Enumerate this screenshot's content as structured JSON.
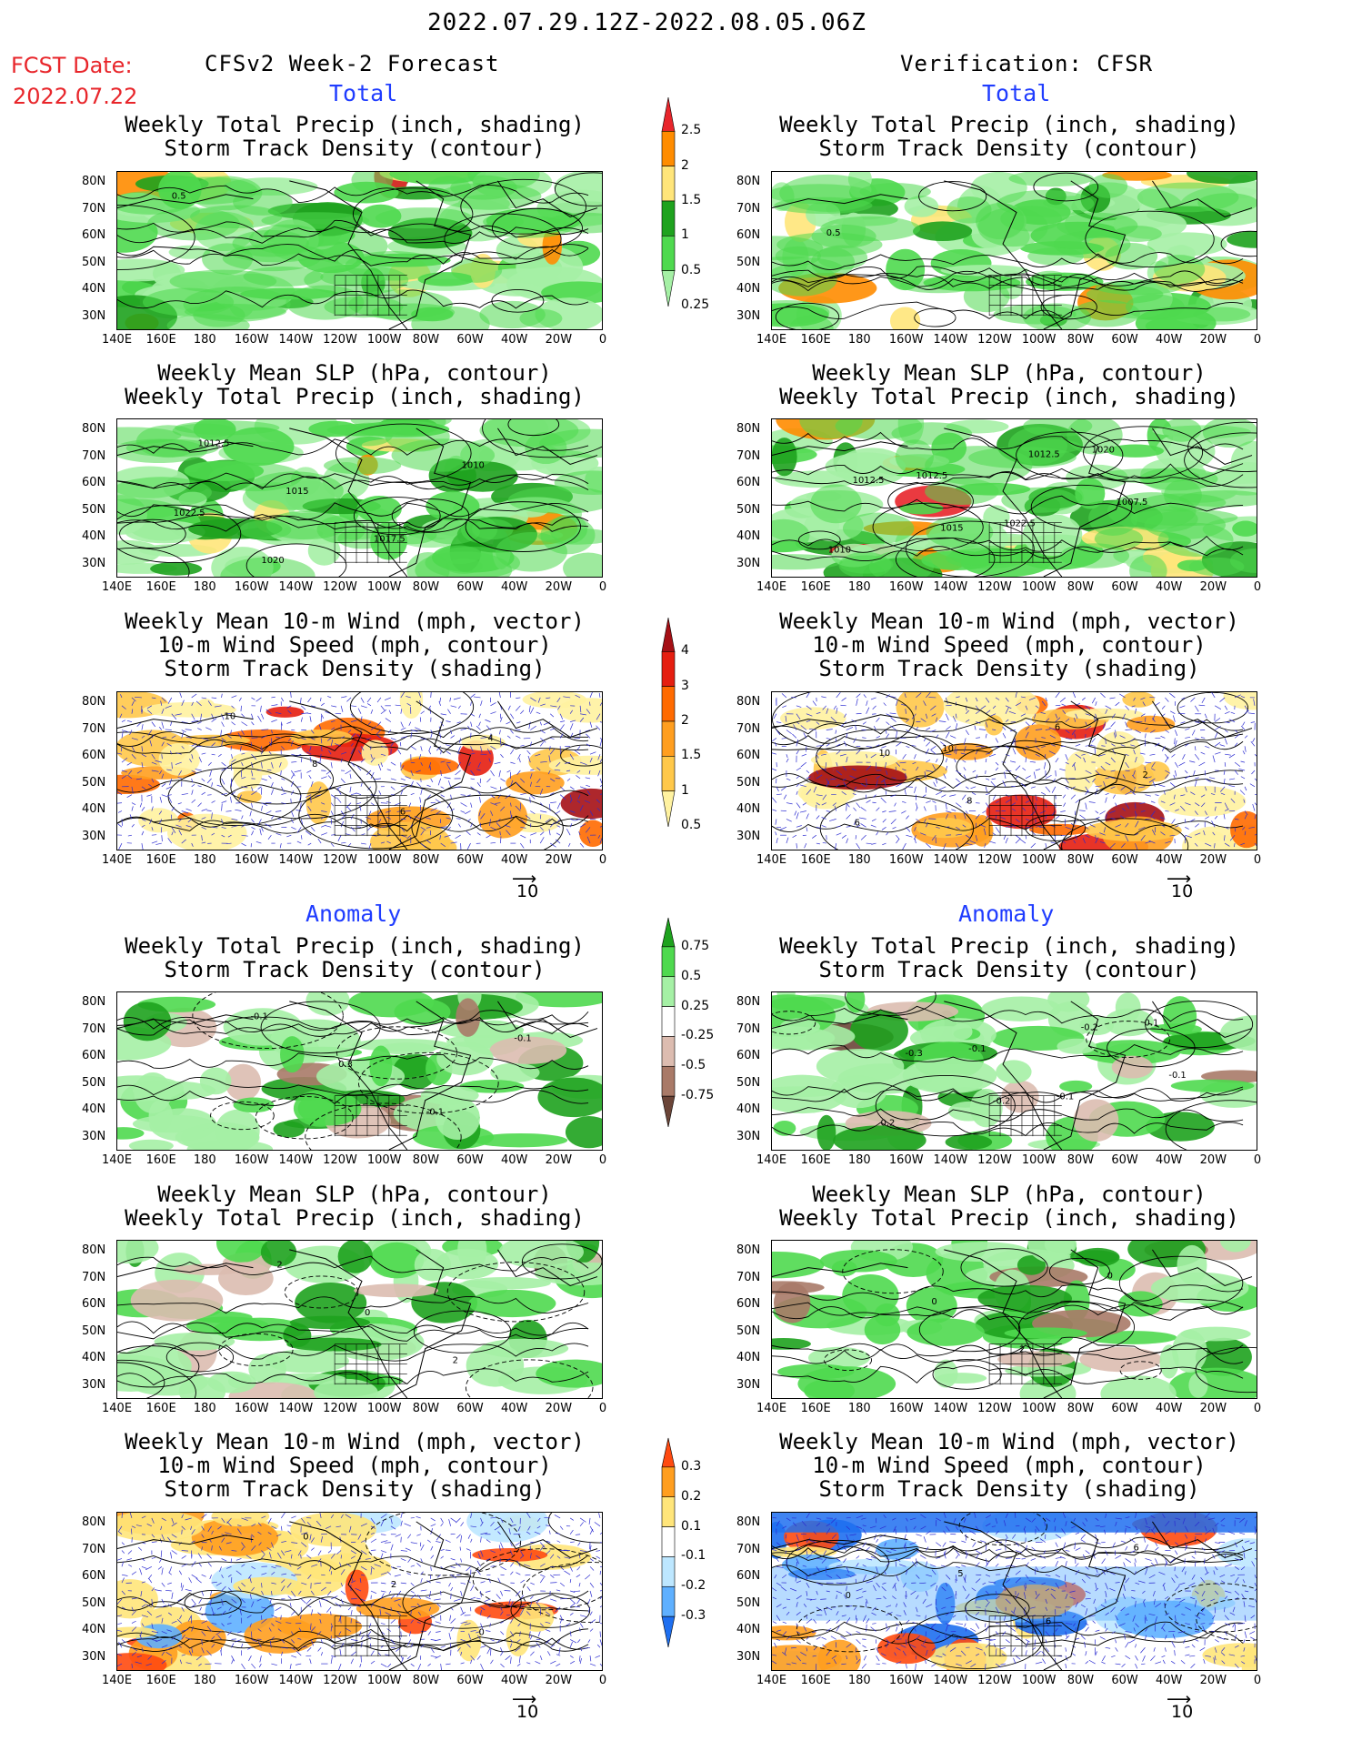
{
  "header": {
    "date_range": "2022.07.29.12Z-2022.08.05.06Z",
    "fcst_label": "FCST Date:",
    "fcst_date": "2022.07.22",
    "left_title": "CFSv2 Week-2 Forecast",
    "right_title": "Verification: CFSR",
    "total": "Total",
    "anomaly": "Anomaly"
  },
  "panel_titles": {
    "precip": [
      "Weekly Total Precip (inch, shading)",
      "Storm Track Density (contour)"
    ],
    "slp": [
      "Weekly Mean SLP (hPa, contour)",
      "Weekly Total Precip (inch, shading)"
    ],
    "wind": [
      "Weekly Mean 10-m Wind (mph, vector)",
      "10-m Wind Speed (mph, contour)",
      "Storm Track Density (shading)"
    ]
  },
  "axes": {
    "lat_labels": [
      "80N",
      "70N",
      "60N",
      "50N",
      "40N",
      "30N"
    ],
    "lon_labels": [
      "140E",
      "160E",
      "180",
      "160W",
      "140W",
      "120W",
      "100W",
      "80W",
      "60W",
      "40W",
      "20W",
      "0"
    ]
  },
  "vector_ref": "10",
  "colorbars": {
    "precip_total": {
      "labels": [
        "2.5",
        "2",
        "1.5",
        "1",
        "0.5",
        "0.25"
      ],
      "colors": [
        "#e8252b",
        "#ff8c00",
        "#ffe57a",
        "#1ea21e",
        "#4fd94f",
        "#a5f0a5"
      ]
    },
    "storm_total": {
      "labels": [
        "4",
        "3",
        "2",
        "1.5",
        "1",
        "0.5"
      ],
      "colors": [
        "#a50f15",
        "#e51e10",
        "#ff6a00",
        "#ff9e1f",
        "#ffc84a",
        "#fff2a0"
      ]
    },
    "precip_anom": {
      "labels": [
        "0.75",
        "0.5",
        "0.25",
        "-0.25",
        "-0.5",
        "-0.75"
      ],
      "colors": [
        "#1ea21e",
        "#4fd94f",
        "#a5f0a5",
        "#ffffff",
        "#dcbcb0",
        "#a97a68",
        "#6b4538"
      ]
    },
    "storm_anom": {
      "labels": [
        "0.3",
        "0.2",
        "0.1",
        "-0.1",
        "-0.2",
        "-0.3"
      ],
      "colors": [
        "#ff4a10",
        "#ff9e1f",
        "#ffe57a",
        "#ffffff",
        "#bde7ff",
        "#5fb0ff",
        "#1e6ff0"
      ]
    }
  },
  "contour_labels": {
    "fcst_precip_total": [
      "0.5"
    ],
    "obs_precip_total": [
      "0.5"
    ],
    "fcst_slp_total": [
      "1012.5",
      "1015",
      "1017.5",
      "1010",
      "1022.5",
      "1020"
    ],
    "obs_slp_total": [
      "1012.5",
      "1015",
      "1012.5",
      "1007.5",
      "1010",
      "1012.5",
      "1022.5",
      "1020"
    ],
    "fcst_wind_total": [
      "10",
      "8",
      "6",
      "4"
    ],
    "obs_wind_total": [
      "10",
      "8",
      "6",
      "2",
      "6",
      "10"
    ],
    "fcst_precip_anom": [
      "-0.1",
      "0.3",
      "-0.1",
      "-0.1"
    ],
    "obs_precip_anom": [
      "-0.3",
      "-0.2",
      "-0.2",
      "-0.1",
      "0.2",
      "-0.1",
      "-0.1",
      "0.1"
    ],
    "fcst_slp_anom": [
      "2",
      "0",
      "2"
    ],
    "obs_slp_anom": [
      "0",
      "2",
      "0"
    ],
    "fcst_wind_anom": [
      "0",
      "2",
      "0"
    ],
    "obs_wind_anom": [
      "5",
      "6",
      "6",
      "0"
    ]
  }
}
